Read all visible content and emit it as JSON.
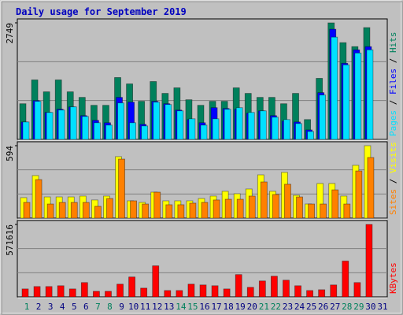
{
  "chart_data": [
    {
      "type": "bar",
      "title": "Daily usage for September 2019",
      "ylim": [
        0,
        2749
      ],
      "yticks": [
        2749
      ],
      "series": [
        {
          "name": "Hits",
          "color": "#00805c",
          "values": [
            841,
            1403,
            1122,
            1403,
            1122,
            991,
            804,
            804,
            1459,
            1309,
            898,
            1365,
            1085,
            1216,
            935,
            804,
            898,
            898,
            1216,
            1085,
            991,
            991,
            841,
            1085,
            468,
            1440,
            2749,
            2282,
            2188,
            2637,
            0
          ]
        },
        {
          "name": "Files",
          "color": "#0000ff",
          "values": [
            411,
            916,
            636,
            711,
            767,
            561,
            449,
            393,
            991,
            879,
            355,
            898,
            842,
            692,
            468,
            393,
            748,
            729,
            711,
            617,
            673,
            561,
            430,
            411,
            224,
            1103,
            2599,
            1795,
            2113,
            2188,
            0
          ]
        },
        {
          "name": "Pages",
          "color": "#00e0ff",
          "values": [
            411,
            898,
            636,
            692,
            767,
            542,
            393,
            337,
            860,
            393,
            318,
            879,
            823,
            673,
            486,
            337,
            486,
            711,
            748,
            636,
            673,
            524,
            468,
            374,
            187,
            1047,
            2412,
            1758,
            2038,
            2113,
            0
          ]
        }
      ]
    },
    {
      "type": "bar",
      "ylim": [
        0,
        594
      ],
      "yticks": [
        594
      ],
      "series": [
        {
          "name": "Visits",
          "color": "#ffff00",
          "values": [
            168,
            349,
            174,
            174,
            174,
            181,
            149,
            181,
            504,
            142,
            129,
            213,
            142,
            142,
            142,
            161,
            181,
            220,
            200,
            239,
            355,
            220,
            375,
            187,
            116,
            284,
            284,
            181,
            433,
            594,
            0
          ]
        },
        {
          "name": "Sites",
          "color": "#ff8000",
          "values": [
            129,
            316,
            116,
            129,
            129,
            129,
            97,
            161,
            484,
            142,
            116,
            213,
            110,
            110,
            123,
            129,
            149,
            155,
            155,
            181,
            297,
            194,
            278,
            174,
            116,
            116,
            232,
            116,
            387,
            497,
            0
          ]
        }
      ]
    },
    {
      "type": "bar",
      "ylim": [
        0,
        571616
      ],
      "yticks": [
        571616
      ],
      "categories": [
        "1",
        "2",
        "3",
        "4",
        "5",
        "6",
        "7",
        "8",
        "9",
        "10",
        "11",
        "12",
        "13",
        "14",
        "15",
        "16",
        "17",
        "18",
        "19",
        "20",
        "21",
        "22",
        "23",
        "24",
        "25",
        "26",
        "27",
        "28",
        "29",
        "30",
        "31"
      ],
      "category_colors": [
        "#00805c",
        "#000080",
        "#000080",
        "#000080",
        "#000080",
        "#000080",
        "#00805c",
        "#00805c",
        "#000080",
        "#000080",
        "#000080",
        "#000080",
        "#000080",
        "#00805c",
        "#00805c",
        "#000080",
        "#000080",
        "#000080",
        "#000080",
        "#000080",
        "#00805c",
        "#00805c",
        "#000080",
        "#000080",
        "#000080",
        "#000080",
        "#000080",
        "#00805c",
        "#00805c",
        "#000080",
        "#000080"
      ],
      "series": [
        {
          "name": "KBytes",
          "color": "#ff0000",
          "values": [
            62813,
            81657,
            81657,
            87936,
            62813,
            113059,
            43969,
            43969,
            100497,
            157026,
            69091,
            244960,
            50249,
            50249,
            100497,
            94214,
            87936,
            62813,
            175870,
            75371,
            125621,
            163307,
            131902,
            87936,
            50249,
            56531,
            94214,
            282646,
            113059,
            571616,
            0
          ]
        }
      ]
    }
  ]
}
